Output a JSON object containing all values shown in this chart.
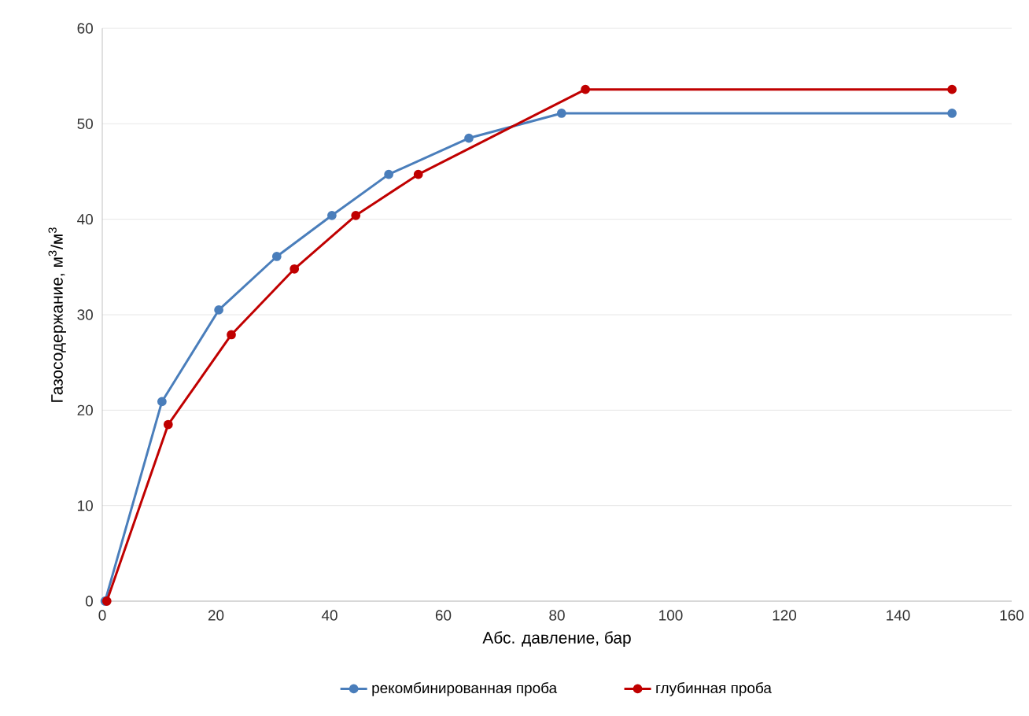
{
  "chart_data": {
    "type": "line",
    "xlabel": "Абс. давление, бар",
    "ylabel": "Газосодержание, м$^{3}$/м$^{3}$",
    "xlim": [
      0,
      160
    ],
    "ylim": [
      0,
      60
    ],
    "xticks": [
      0,
      20,
      40,
      60,
      80,
      100,
      120,
      140,
      160
    ],
    "yticks": [
      0,
      10,
      20,
      30,
      40,
      50,
      60
    ],
    "grid": "y",
    "legend": "bottom",
    "marker": "circle",
    "line_style": "solid",
    "series": [
      {
        "name": "рекомбинированная проба",
        "color": "#4a7ebb",
        "x": [
          0.5,
          10.5,
          20.5,
          30.7,
          40.4,
          50.4,
          64.5,
          80.8,
          149.5
        ],
        "values": [
          0,
          20.9,
          30.5,
          36.1,
          40.4,
          44.7,
          48.5,
          51.1,
          51.1
        ]
      },
      {
        "name": "глубинная проба",
        "color": "#c00000",
        "x": [
          0.8,
          11.6,
          22.7,
          33.8,
          44.6,
          55.6,
          85,
          149.5
        ],
        "values": [
          0,
          18.5,
          27.9,
          34.8,
          40.4,
          44.7,
          53.6,
          53.6
        ]
      }
    ]
  }
}
